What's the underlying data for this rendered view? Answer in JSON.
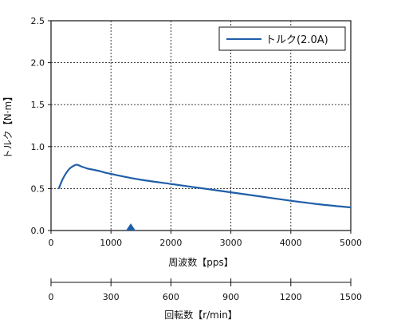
{
  "chart_data": {
    "type": "line",
    "xlabel": "周波数【pps】",
    "ylabel": "トルク【N·m】",
    "xlim": [
      0,
      5000
    ],
    "ylim": [
      0,
      2.5
    ],
    "x_ticks": [
      "0",
      "1000",
      "2000",
      "3000",
      "4000",
      "5000"
    ],
    "y_ticks": [
      "0.0",
      "0.5",
      "1.0",
      "1.5",
      "2.0",
      "2.5"
    ],
    "grid": true,
    "legend_position": "top-right",
    "series": [
      {
        "name": "トルク(2.0A)",
        "color": "#1f5fa8",
        "x": [
          130,
          200,
          300,
          400,
          450,
          500,
          600,
          700,
          800,
          900,
          1000,
          1200,
          1500,
          2000,
          2500,
          3000,
          3500,
          4000,
          4500,
          5000
        ],
        "y": [
          0.5,
          0.62,
          0.73,
          0.78,
          0.78,
          0.765,
          0.74,
          0.725,
          0.71,
          0.69,
          0.675,
          0.645,
          0.605,
          0.555,
          0.505,
          0.455,
          0.405,
          0.355,
          0.31,
          0.275
        ]
      }
    ],
    "marker": {
      "x": 1330,
      "color": "#1f5fa8"
    },
    "secondary_axis": {
      "label": "回転数【r/min】",
      "range": [
        0,
        1500
      ],
      "ticks": [
        "0",
        "300",
        "600",
        "900",
        "1200",
        "1500"
      ]
    }
  }
}
